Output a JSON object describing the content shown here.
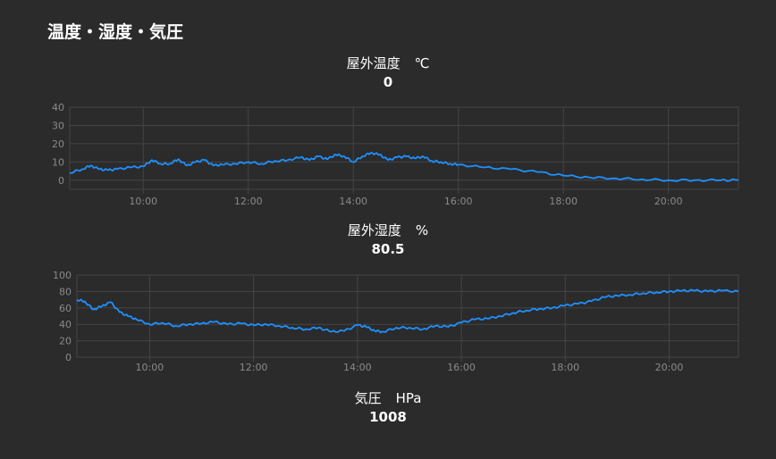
{
  "page": {
    "title": "温度・湿度・気圧"
  },
  "widgets": {
    "temperature": {
      "label": "屋外温度",
      "unit": "℃",
      "value": "0"
    },
    "humidity": {
      "label": "屋外湿度",
      "unit": "%",
      "value": "80.5"
    },
    "pressure": {
      "label": "気圧",
      "unit": "HPa",
      "value": "1008"
    }
  },
  "colors": {
    "background": "#2b2b2b",
    "line": "#1e90ff",
    "grid": "#444444",
    "tick_text": "#8a8a8a"
  },
  "chart_data": [
    {
      "type": "line",
      "title": "屋外温度 ℃",
      "xlabel": "",
      "ylabel": "",
      "xlim": [
        "08:36",
        "21:20"
      ],
      "ylim": [
        -5,
        40
      ],
      "yticks": [
        0,
        10,
        20,
        30,
        40
      ],
      "xticks": [
        "10:00",
        "12:00",
        "14:00",
        "16:00",
        "18:00",
        "20:00"
      ],
      "grid": true,
      "series": [
        {
          "x": [
            "08:36",
            "08:50",
            "09:00",
            "09:10",
            "09:20",
            "09:30",
            "09:45",
            "10:00",
            "10:10",
            "10:20",
            "10:30",
            "10:40",
            "10:50",
            "11:00",
            "11:10",
            "11:20",
            "11:30",
            "11:45",
            "12:00",
            "12:15",
            "12:30",
            "12:45",
            "13:00",
            "13:10",
            "13:20",
            "13:30",
            "13:40",
            "13:50",
            "14:00",
            "14:10",
            "14:20",
            "14:30",
            "14:40",
            "14:50",
            "15:00",
            "15:10",
            "15:20",
            "15:30",
            "15:40",
            "15:50",
            "16:00",
            "16:30",
            "17:00",
            "17:30",
            "18:00",
            "18:30",
            "19:00",
            "19:30",
            "20:00",
            "20:30",
            "21:00",
            "21:20"
          ],
          "y": [
            4,
            6,
            8,
            6,
            5.5,
            6,
            7,
            7.5,
            11,
            9,
            9,
            11.5,
            8,
            10,
            11,
            8,
            8.5,
            9,
            10,
            9,
            10.5,
            11,
            12.5,
            11,
            13,
            11.5,
            14,
            13,
            10,
            13,
            15,
            14,
            11,
            12.5,
            13,
            12,
            13,
            10.5,
            10,
            9,
            8.5,
            7,
            6,
            4.5,
            2.5,
            1.5,
            1,
            0.5,
            0,
            0,
            0,
            0
          ]
        }
      ]
    },
    {
      "type": "line",
      "title": "屋外湿度 %",
      "xlabel": "",
      "ylabel": "",
      "xlim": [
        "08:36",
        "21:20"
      ],
      "ylim": [
        0,
        100
      ],
      "yticks": [
        0,
        20,
        40,
        60,
        80,
        100
      ],
      "xticks": [
        "10:00",
        "12:00",
        "14:00",
        "16:00",
        "18:00",
        "20:00"
      ],
      "grid": true,
      "series": [
        {
          "x": [
            "08:36",
            "08:45",
            "08:55",
            "09:05",
            "09:15",
            "09:25",
            "09:35",
            "09:45",
            "10:00",
            "10:15",
            "10:30",
            "10:45",
            "11:00",
            "11:15",
            "11:30",
            "11:45",
            "12:00",
            "12:15",
            "12:30",
            "12:45",
            "13:00",
            "13:15",
            "13:30",
            "13:45",
            "14:00",
            "14:10",
            "14:20",
            "14:30",
            "14:45",
            "15:00",
            "15:15",
            "15:30",
            "15:45",
            "16:00",
            "16:15",
            "16:30",
            "16:45",
            "17:00",
            "17:15",
            "17:30",
            "17:45",
            "18:00",
            "18:15",
            "18:30",
            "18:45",
            "19:00",
            "19:15",
            "19:30",
            "19:45",
            "20:00",
            "20:15",
            "20:30",
            "20:45",
            "21:00",
            "21:20"
          ],
          "y": [
            70,
            68,
            58,
            62,
            67,
            55,
            50,
            46,
            40,
            42,
            38,
            40,
            41,
            43,
            40,
            41,
            39,
            40,
            38,
            36,
            34,
            36,
            31,
            32,
            39,
            37,
            32,
            31,
            36,
            36,
            34,
            38,
            37,
            42,
            46,
            47,
            50,
            54,
            57,
            59,
            60,
            63,
            65,
            68,
            73,
            75,
            76,
            78,
            79,
            80,
            81,
            81,
            80,
            81,
            80
          ]
        }
      ]
    }
  ]
}
